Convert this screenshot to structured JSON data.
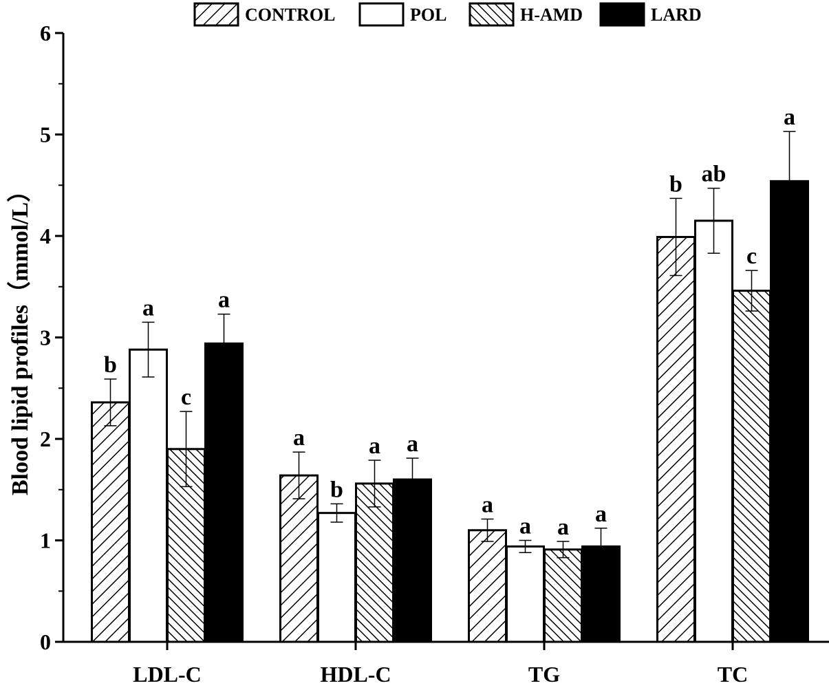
{
  "chart_data": {
    "type": "bar",
    "title": "",
    "xlabel": "",
    "ylabel": "Blood lipid profiles（mmol/L）",
    "ylim": [
      0,
      6
    ],
    "yticks": [
      "0",
      "1",
      "2",
      "3",
      "4",
      "5",
      "6"
    ],
    "categories": [
      "LDL-C",
      "HDL-C",
      "TG",
      "TC"
    ],
    "legend_position": "top",
    "series": [
      {
        "name": "CONTROL",
        "pattern": "hatch-forward",
        "values": [
          2.36,
          1.64,
          1.1,
          3.99
        ],
        "errors": [
          0.23,
          0.23,
          0.11,
          0.38
        ],
        "letters": [
          "b",
          "a",
          "a",
          "b"
        ]
      },
      {
        "name": "POL",
        "pattern": "white",
        "values": [
          2.88,
          1.27,
          0.94,
          4.15
        ],
        "errors": [
          0.27,
          0.09,
          0.06,
          0.32
        ],
        "letters": [
          "a",
          "b",
          "a",
          "ab"
        ]
      },
      {
        "name": "H-AMD",
        "pattern": "hatch-backward",
        "values": [
          1.9,
          1.56,
          0.91,
          3.46
        ],
        "errors": [
          0.37,
          0.23,
          0.08,
          0.2
        ],
        "letters": [
          "c",
          "a",
          "a",
          "c"
        ]
      },
      {
        "name": "LARD",
        "pattern": "black",
        "values": [
          2.94,
          1.6,
          0.94,
          4.54
        ],
        "errors": [
          0.29,
          0.21,
          0.18,
          0.49
        ],
        "letters": [
          "a",
          "a",
          "a",
          "a"
        ]
      }
    ],
    "colors": {
      "fill_black": "#000000",
      "fill_white": "#ffffff",
      "stroke": "#000000"
    }
  }
}
